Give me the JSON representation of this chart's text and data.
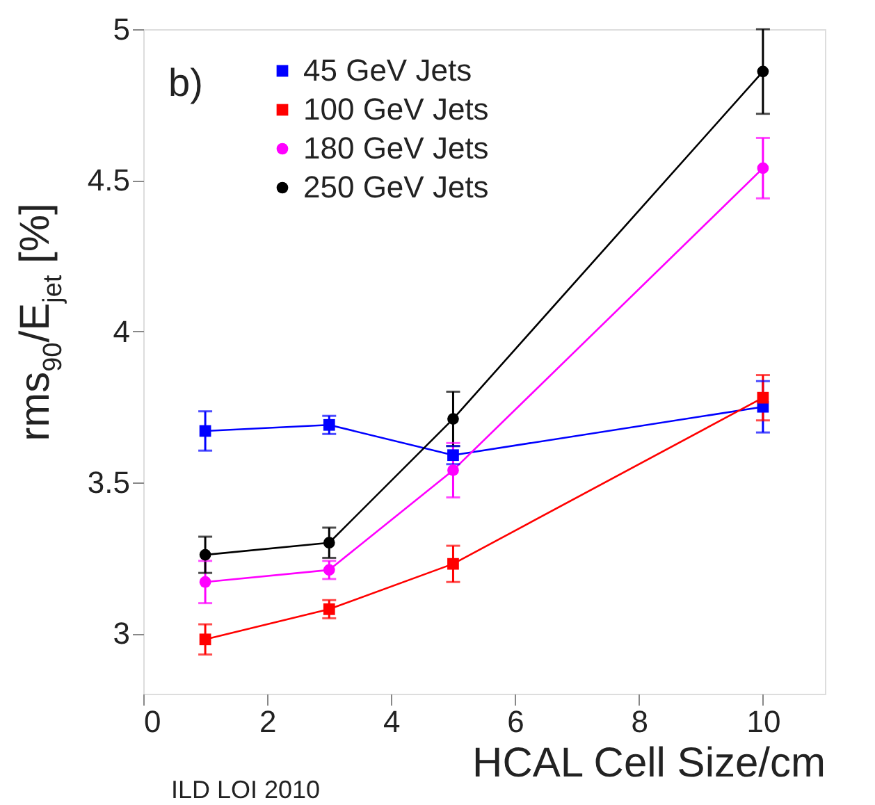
{
  "chart_data": {
    "type": "line",
    "xlabel": "HCAL Cell Size/cm",
    "ylabel": "rms$_{90}$/E$_{jet}$ [%]",
    "x": [
      1,
      3,
      5,
      10
    ],
    "series": [
      {
        "name": "45 GeV Jets",
        "color": "#0000ff",
        "marker": "square",
        "values": [
          3.67,
          3.69,
          3.59,
          3.75
        ],
        "errors": [
          0.065,
          0.03,
          0.03,
          0.085
        ]
      },
      {
        "name": "100 GeV Jets",
        "color": "#ff0000",
        "marker": "square",
        "values": [
          2.98,
          3.08,
          3.23,
          3.78
        ],
        "errors": [
          0.05,
          0.03,
          0.06,
          0.075
        ]
      },
      {
        "name": "180 GeV Jets",
        "color": "#ff00ff",
        "marker": "circle",
        "values": [
          3.17,
          3.21,
          3.54,
          4.54
        ],
        "errors": [
          0.07,
          0.03,
          0.09,
          0.1
        ]
      },
      {
        "name": "250 GeV Jets",
        "color": "#000000",
        "marker": "circle",
        "values": [
          3.26,
          3.3,
          3.71,
          4.86
        ],
        "errors": [
          0.06,
          0.05,
          0.09,
          0.14
        ]
      }
    ],
    "xlim": [
      0,
      11
    ],
    "xticks": [
      0,
      2,
      4,
      6,
      8,
      10
    ],
    "ylim": [
      2.8,
      5
    ],
    "yticks": [
      3,
      3.5,
      4,
      4.5,
      5
    ],
    "grid": false,
    "legend": "top left",
    "line_style": "solid",
    "annotations": [
      {
        "text": "b)"
      },
      {
        "text": "ILD LOI 2010"
      }
    ]
  }
}
